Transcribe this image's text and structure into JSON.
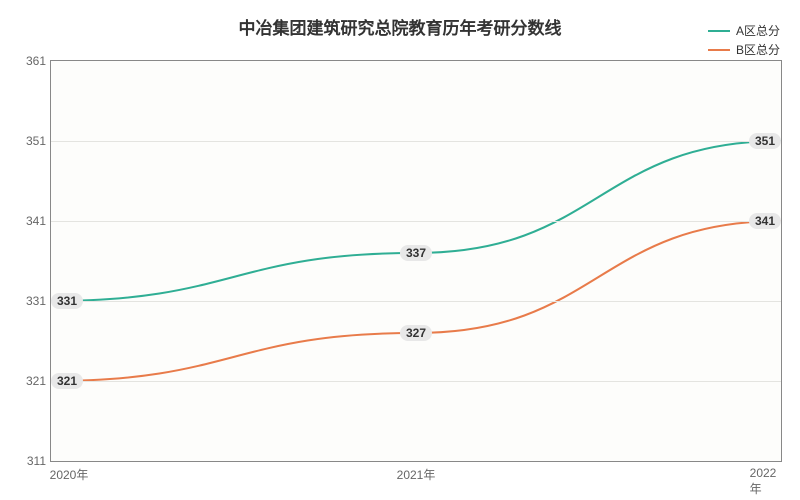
{
  "chart": {
    "type": "line",
    "title": "中冶集团建筑研究总院教育历年考研分数线",
    "title_fontsize": 17,
    "title_color": "#333333",
    "background_color": "#ffffff",
    "plot_background": "#fdfdfb",
    "grid_color": "#e4e4e0",
    "axis_color": "#888888",
    "tick_label_color": "#666666",
    "tick_label_fontsize": 12,
    "xlim_labels": [
      "2020年",
      "2021年",
      "2022年"
    ],
    "ylim": [
      311,
      361
    ],
    "ytick_step": 10,
    "yticks": [
      311,
      321,
      331,
      341,
      351,
      361
    ],
    "series": [
      {
        "name": "A区总分",
        "color": "#2fae94",
        "line_width": 2,
        "values": [
          331,
          337,
          351
        ],
        "label_bg": "#e8e8e8",
        "label_color": "#333333"
      },
      {
        "name": "B区总分",
        "color": "#e87b4a",
        "line_width": 2,
        "values": [
          321,
          327,
          341
        ],
        "label_bg": "#e8e8e8",
        "label_color": "#333333"
      }
    ],
    "legend": {
      "position": "top-right",
      "fontsize": 12,
      "text_color": "#333333"
    }
  }
}
